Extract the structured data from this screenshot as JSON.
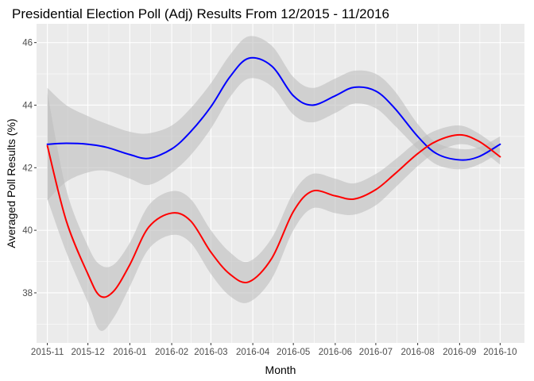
{
  "chart_data": {
    "type": "line",
    "title": "Presidential Election Poll (Adj) Results From 12/2015 - 11/2016",
    "xlabel": "Month",
    "ylabel": "Averaged Poll Results (%)",
    "x_ticks": [
      "2015-11",
      "2015-12",
      "2016-01",
      "2016-02",
      "2016-03",
      "2016-04",
      "2016-05",
      "2016-06",
      "2016-07",
      "2016-08",
      "2016-09",
      "2016-10"
    ],
    "y_ticks": [
      38,
      40,
      42,
      44,
      46
    ],
    "xlim": [
      "2015-10-24",
      "2016-10-19"
    ],
    "ylim": [
      36.4,
      46.6
    ],
    "grid": true,
    "legend": "none",
    "series": [
      {
        "color": "#0000ff",
        "band_color": "#bebebe",
        "points": [
          {
            "x": "2015-11-01",
            "y": 42.75,
            "lo": 40.95,
            "hi": 44.55
          },
          {
            "x": "2015-11-15",
            "y": 42.78,
            "lo": 41.55,
            "hi": 44.0
          },
          {
            "x": "2015-12-01",
            "y": 42.75,
            "lo": 41.85,
            "hi": 43.65
          },
          {
            "x": "2015-12-15",
            "y": 42.65,
            "lo": 41.9,
            "hi": 43.4
          },
          {
            "x": "2016-01-01",
            "y": 42.42,
            "lo": 41.65,
            "hi": 43.15
          },
          {
            "x": "2016-01-15",
            "y": 42.3,
            "lo": 41.45,
            "hi": 43.1
          },
          {
            "x": "2016-02-01",
            "y": 42.6,
            "lo": 41.85,
            "hi": 43.35
          },
          {
            "x": "2016-02-15",
            "y": 43.15,
            "lo": 42.4,
            "hi": 43.9
          },
          {
            "x": "2016-03-01",
            "y": 43.95,
            "lo": 43.25,
            "hi": 44.7
          },
          {
            "x": "2016-03-15",
            "y": 44.9,
            "lo": 44.25,
            "hi": 45.6
          },
          {
            "x": "2016-03-29",
            "y": 45.5,
            "lo": 44.85,
            "hi": 46.2
          },
          {
            "x": "2016-04-15",
            "y": 45.25,
            "lo": 44.6,
            "hi": 45.9
          },
          {
            "x": "2016-05-01",
            "y": 44.3,
            "lo": 43.7,
            "hi": 44.9
          },
          {
            "x": "2016-05-15",
            "y": 44.0,
            "lo": 43.45,
            "hi": 44.55
          },
          {
            "x": "2016-06-01",
            "y": 44.3,
            "lo": 43.75,
            "hi": 44.85
          },
          {
            "x": "2016-06-15",
            "y": 44.57,
            "lo": 44.05,
            "hi": 45.1
          },
          {
            "x": "2016-07-01",
            "y": 44.45,
            "lo": 43.9,
            "hi": 45.0
          },
          {
            "x": "2016-07-15",
            "y": 43.9,
            "lo": 43.35,
            "hi": 44.45
          },
          {
            "x": "2016-08-01",
            "y": 43.0,
            "lo": 42.6,
            "hi": 43.4
          },
          {
            "x": "2016-08-15",
            "y": 42.45,
            "lo": 42.1,
            "hi": 42.8
          },
          {
            "x": "2016-09-01",
            "y": 42.25,
            "lo": 41.95,
            "hi": 42.6
          },
          {
            "x": "2016-09-15",
            "y": 42.35,
            "lo": 42.1,
            "hi": 42.65
          },
          {
            "x": "2016-10-01",
            "y": 42.75,
            "lo": 42.5,
            "hi": 43.0
          }
        ]
      },
      {
        "color": "#ff0000",
        "band_color": "#bebebe",
        "points": [
          {
            "x": "2015-11-01",
            "y": 42.7,
            "lo": 41.0,
            "hi": 44.4
          },
          {
            "x": "2015-11-15",
            "y": 40.3,
            "lo": 39.3,
            "hi": 41.3
          },
          {
            "x": "2015-12-01",
            "y": 38.6,
            "lo": 37.7,
            "hi": 39.5
          },
          {
            "x": "2015-12-10",
            "y": 37.9,
            "lo": 36.8,
            "hi": 38.9
          },
          {
            "x": "2015-12-20",
            "y": 38.05,
            "lo": 37.2,
            "hi": 38.9
          },
          {
            "x": "2016-01-01",
            "y": 38.9,
            "lo": 38.2,
            "hi": 39.6
          },
          {
            "x": "2016-01-15",
            "y": 40.1,
            "lo": 39.4,
            "hi": 40.8
          },
          {
            "x": "2016-02-01",
            "y": 40.55,
            "lo": 39.85,
            "hi": 41.25
          },
          {
            "x": "2016-02-15",
            "y": 40.3,
            "lo": 39.6,
            "hi": 41.0
          },
          {
            "x": "2016-03-01",
            "y": 39.3,
            "lo": 38.6,
            "hi": 40.0
          },
          {
            "x": "2016-03-15",
            "y": 38.6,
            "lo": 37.9,
            "hi": 39.3
          },
          {
            "x": "2016-03-29",
            "y": 38.35,
            "lo": 37.7,
            "hi": 39.0
          },
          {
            "x": "2016-04-15",
            "y": 39.1,
            "lo": 38.45,
            "hi": 39.75
          },
          {
            "x": "2016-05-01",
            "y": 40.6,
            "lo": 40.0,
            "hi": 41.2
          },
          {
            "x": "2016-05-15",
            "y": 41.25,
            "lo": 40.7,
            "hi": 41.8
          },
          {
            "x": "2016-06-01",
            "y": 41.1,
            "lo": 40.55,
            "hi": 41.65
          },
          {
            "x": "2016-06-15",
            "y": 41.0,
            "lo": 40.5,
            "hi": 41.5
          },
          {
            "x": "2016-07-01",
            "y": 41.3,
            "lo": 40.8,
            "hi": 41.8
          },
          {
            "x": "2016-07-15",
            "y": 41.8,
            "lo": 41.35,
            "hi": 42.25
          },
          {
            "x": "2016-08-01",
            "y": 42.45,
            "lo": 42.05,
            "hi": 42.85
          },
          {
            "x": "2016-08-15",
            "y": 42.85,
            "lo": 42.5,
            "hi": 43.2
          },
          {
            "x": "2016-09-01",
            "y": 43.05,
            "lo": 42.75,
            "hi": 43.35
          },
          {
            "x": "2016-09-15",
            "y": 42.85,
            "lo": 42.6,
            "hi": 43.1
          },
          {
            "x": "2016-10-01",
            "y": 42.35,
            "lo": 42.1,
            "hi": 42.6
          }
        ]
      }
    ]
  }
}
